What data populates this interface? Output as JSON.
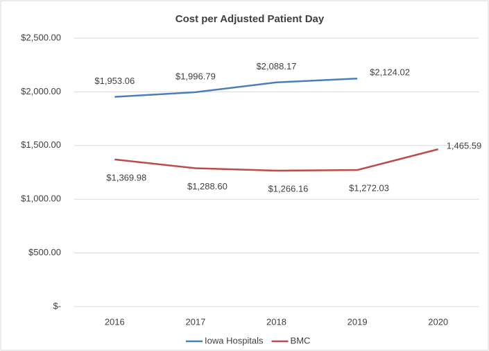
{
  "chart_data": {
    "type": "line",
    "title": "Cost per Adjusted Patient Day",
    "categories": [
      "2016",
      "2017",
      "2018",
      "2019",
      "2020"
    ],
    "series": [
      {
        "name": "Iowa Hospitals",
        "color": "#4a7ebb",
        "values": [
          1953.06,
          1996.79,
          2088.17,
          2124.02,
          null
        ],
        "value_labels": [
          "$1,953.06",
          "$1,996.79",
          "$2,088.17",
          "$2,124.02",
          null
        ]
      },
      {
        "name": "BMC",
        "color": "#be4b48",
        "values": [
          1369.98,
          1288.6,
          1266.16,
          1272.03,
          1465.59
        ],
        "value_labels": [
          "$1,369.98",
          "$1,288.60",
          "$1,266.16",
          "$1,272.03",
          "1,465.59"
        ]
      }
    ],
    "ylim": [
      0,
      2500
    ],
    "yticks": [
      {
        "value": 0,
        "label": "$-"
      },
      {
        "value": 500,
        "label": "$500.00"
      },
      {
        "value": 1000,
        "label": "$1,000.00"
      },
      {
        "value": 1500,
        "label": "$1,500.00"
      },
      {
        "value": 2000,
        "label": "$2,000.00"
      },
      {
        "value": 2500,
        "label": "$2,500.00"
      }
    ],
    "grid": true,
    "legend": "bottom"
  }
}
